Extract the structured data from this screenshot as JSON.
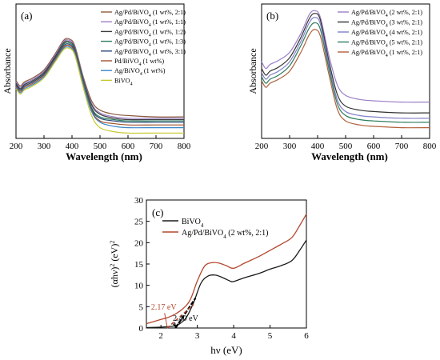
{
  "chart_data": [
    {
      "type": "line",
      "panel_label": "(a)",
      "xlabel": "Wavelength (nm)",
      "ylabel": "Absorbance",
      "xlim": [
        200,
        800
      ],
      "xticks": [
        200,
        300,
        400,
        500,
        600,
        700,
        800
      ],
      "ylim": [
        0,
        1
      ],
      "legend_position": "top-right",
      "series": [
        {
          "name": "Ag/Pd/BiVO4 (1 wt%, 2:1)",
          "color": "#8b5a3c",
          "x": [
            200,
            215,
            230,
            260,
            300,
            340,
            370,
            390,
            410,
            440,
            470,
            500,
            550,
            600,
            700,
            800
          ],
          "y": [
            0.43,
            0.39,
            0.42,
            0.45,
            0.51,
            0.63,
            0.73,
            0.74,
            0.69,
            0.46,
            0.28,
            0.21,
            0.18,
            0.17,
            0.16,
            0.16
          ]
        },
        {
          "name": "Ag/Pd/BiVO4 (1 wt%, 1:1)",
          "color": "#9c7fc8",
          "x": [
            200,
            215,
            230,
            260,
            300,
            340,
            370,
            390,
            410,
            440,
            470,
            500,
            550,
            600,
            700,
            800
          ],
          "y": [
            0.42,
            0.38,
            0.41,
            0.44,
            0.5,
            0.62,
            0.72,
            0.73,
            0.68,
            0.45,
            0.26,
            0.19,
            0.16,
            0.15,
            0.15,
            0.15
          ]
        },
        {
          "name": "Ag/Pd/BiVO4 (1 wt%, 1:2)",
          "color": "#3d3d3d",
          "x": [
            200,
            215,
            230,
            260,
            300,
            340,
            370,
            390,
            410,
            440,
            470,
            500,
            550,
            600,
            700,
            800
          ],
          "y": [
            0.41,
            0.37,
            0.4,
            0.43,
            0.49,
            0.61,
            0.71,
            0.72,
            0.67,
            0.44,
            0.25,
            0.18,
            0.15,
            0.14,
            0.14,
            0.14
          ]
        },
        {
          "name": "Ag/Pd/BiVO4 (1 wt%, 1:3)",
          "color": "#2e7d5e",
          "x": [
            200,
            215,
            230,
            260,
            300,
            340,
            370,
            390,
            410,
            440,
            470,
            500,
            550,
            600,
            700,
            800
          ],
          "y": [
            0.4,
            0.36,
            0.39,
            0.42,
            0.48,
            0.6,
            0.7,
            0.71,
            0.66,
            0.43,
            0.23,
            0.16,
            0.14,
            0.13,
            0.13,
            0.13
          ]
        },
        {
          "name": "Ag/Pd/BiVO4 (1 wt%, 3:1)",
          "color": "#2a4a7a",
          "x": [
            200,
            215,
            230,
            260,
            300,
            340,
            370,
            390,
            410,
            440,
            470,
            500,
            550,
            600,
            700,
            800
          ],
          "y": [
            0.4,
            0.36,
            0.39,
            0.42,
            0.48,
            0.6,
            0.69,
            0.7,
            0.65,
            0.42,
            0.22,
            0.15,
            0.13,
            0.12,
            0.12,
            0.12
          ]
        },
        {
          "name": "Pd/BiVO4 (1 wt%)",
          "color": "#a0522d",
          "x": [
            200,
            215,
            230,
            260,
            300,
            340,
            370,
            390,
            410,
            440,
            470,
            500,
            550,
            600,
            700,
            800
          ],
          "y": [
            0.39,
            0.35,
            0.38,
            0.41,
            0.47,
            0.59,
            0.68,
            0.69,
            0.64,
            0.41,
            0.21,
            0.13,
            0.11,
            0.1,
            0.1,
            0.1
          ]
        },
        {
          "name": "Ag/BiVO4 (1 wt%)",
          "color": "#3a86c8",
          "x": [
            200,
            215,
            230,
            260,
            300,
            340,
            370,
            390,
            410,
            440,
            470,
            500,
            550,
            600,
            700,
            800
          ],
          "y": [
            0.38,
            0.34,
            0.37,
            0.4,
            0.46,
            0.58,
            0.67,
            0.68,
            0.63,
            0.4,
            0.2,
            0.12,
            0.09,
            0.08,
            0.08,
            0.08
          ]
        },
        {
          "name": "BiVO4",
          "color": "#c8c830",
          "x": [
            200,
            215,
            230,
            260,
            300,
            340,
            370,
            390,
            410,
            440,
            470,
            500,
            550,
            600,
            700,
            800
          ],
          "y": [
            0.37,
            0.33,
            0.36,
            0.39,
            0.45,
            0.57,
            0.66,
            0.67,
            0.62,
            0.38,
            0.17,
            0.08,
            0.05,
            0.04,
            0.04,
            0.04
          ]
        }
      ]
    },
    {
      "type": "line",
      "panel_label": "(b)",
      "xlabel": "Wavelength (nm)",
      "ylabel": "Absorbance",
      "xlim": [
        200,
        800
      ],
      "xticks": [
        200,
        300,
        400,
        500,
        600,
        700,
        800
      ],
      "ylim": [
        0,
        1
      ],
      "legend_position": "top-right",
      "series": [
        {
          "name": "Ag/Pd/BiVO4 (2 wt%, 2:1)",
          "color": "#9c7fc8",
          "x": [
            200,
            215,
            230,
            260,
            300,
            340,
            370,
            390,
            410,
            440,
            470,
            500,
            550,
            600,
            700,
            800
          ],
          "y": [
            0.57,
            0.52,
            0.55,
            0.58,
            0.64,
            0.78,
            0.92,
            0.95,
            0.9,
            0.62,
            0.4,
            0.32,
            0.29,
            0.28,
            0.27,
            0.27
          ]
        },
        {
          "name": "Ag/Pd/BiVO4 (3 wt%, 2:1)",
          "color": "#333333",
          "x": [
            200,
            215,
            230,
            260,
            300,
            340,
            370,
            390,
            410,
            440,
            470,
            500,
            550,
            600,
            700,
            800
          ],
          "y": [
            0.52,
            0.47,
            0.5,
            0.53,
            0.6,
            0.75,
            0.89,
            0.93,
            0.88,
            0.58,
            0.33,
            0.24,
            0.21,
            0.2,
            0.19,
            0.19
          ]
        },
        {
          "name": "Ag/Pd/BiVO4 (4 wt%, 2:1)",
          "color": "#8080c8",
          "x": [
            200,
            215,
            230,
            260,
            300,
            340,
            370,
            390,
            410,
            440,
            470,
            500,
            550,
            600,
            700,
            800
          ],
          "y": [
            0.49,
            0.44,
            0.47,
            0.5,
            0.57,
            0.72,
            0.86,
            0.9,
            0.85,
            0.55,
            0.29,
            0.2,
            0.17,
            0.16,
            0.15,
            0.15
          ]
        },
        {
          "name": "Ag/Pd/BiVO4 (5 wt%, 2:1)",
          "color": "#2e7d5e",
          "x": [
            200,
            215,
            230,
            260,
            300,
            340,
            370,
            390,
            410,
            440,
            470,
            500,
            550,
            600,
            700,
            800
          ],
          "y": [
            0.46,
            0.41,
            0.44,
            0.47,
            0.54,
            0.69,
            0.82,
            0.86,
            0.81,
            0.52,
            0.26,
            0.17,
            0.14,
            0.13,
            0.12,
            0.12
          ]
        },
        {
          "name": "Ag/Pd/BiVO4 (1 wt%, 2:1)",
          "color": "#b0603a",
          "x": [
            200,
            215,
            230,
            260,
            300,
            340,
            370,
            390,
            410,
            440,
            470,
            500,
            550,
            600,
            700,
            800
          ],
          "y": [
            0.43,
            0.38,
            0.41,
            0.44,
            0.5,
            0.64,
            0.77,
            0.81,
            0.76,
            0.48,
            0.22,
            0.13,
            0.1,
            0.09,
            0.08,
            0.08
          ]
        }
      ]
    },
    {
      "type": "line",
      "panel_label": "(c)",
      "xlabel": "hν (eV)",
      "ylabel": "(αhν)² (eV)²",
      "xlim": [
        1.6,
        6
      ],
      "ylim": [
        0,
        30
      ],
      "xticks": [
        2,
        3,
        4,
        5,
        6
      ],
      "yticks": [
        0,
        5,
        10,
        15,
        20,
        25,
        30
      ],
      "legend_position": "top-left",
      "series": [
        {
          "name": "BiVO4",
          "color": "#1a1a1a",
          "x": [
            1.6,
            2.0,
            2.3,
            2.5,
            2.7,
            2.9,
            3.1,
            3.3,
            3.5,
            3.7,
            3.9,
            4.0,
            4.3,
            4.7,
            5.0,
            5.3,
            5.6,
            5.8,
            6.0
          ],
          "y": [
            0.1,
            0.2,
            0.4,
            0.9,
            2.5,
            6.0,
            10.5,
            12.2,
            12.4,
            11.8,
            11.0,
            10.9,
            11.8,
            12.8,
            13.8,
            14.6,
            15.8,
            18.0,
            20.6
          ]
        },
        {
          "name": "Ag/Pd/BiVO4 (2 wt%, 2:1)",
          "color": "#b5472e",
          "x": [
            1.6,
            1.8,
            2.0,
            2.2,
            2.4,
            2.6,
            2.8,
            3.0,
            3.2,
            3.4,
            3.6,
            3.8,
            4.0,
            4.3,
            4.7,
            5.0,
            5.3,
            5.6,
            5.8,
            6.0
          ],
          "y": [
            1.0,
            1.5,
            2.0,
            2.5,
            3.3,
            4.5,
            6.5,
            11.0,
            14.5,
            15.3,
            15.2,
            14.6,
            14.0,
            15.2,
            16.8,
            18.2,
            19.6,
            21.2,
            23.8,
            26.7
          ]
        }
      ],
      "tangents": [
        {
          "label": "2.40 eV",
          "x": [
            2.4,
            2.95
          ],
          "y": [
            0,
            7.0
          ]
        },
        {
          "label": "2.17 eV",
          "x": [
            2.17,
            2.9
          ],
          "y": [
            0,
            5.5
          ]
        }
      ]
    }
  ],
  "legend_a": [
    {
      "base": "Ag/Pd/BiVO",
      "sub": "4",
      "rest": " (1 wt%, 2:1)"
    },
    {
      "base": "Ag/Pd/BiVO",
      "sub": "4",
      "rest": " (1 wt%, 1:1)"
    },
    {
      "base": "Ag/Pd/BiVO",
      "sub": "4",
      "rest": " (1 wt%, 1:2)"
    },
    {
      "base": "Ag/Pd/BiVO",
      "sub": "4",
      "rest": " (1 wt%, 1:3)"
    },
    {
      "base": "Ag/Pd/BiVO",
      "sub": "4",
      "rest": " (1 wt%, 3:1)"
    },
    {
      "base": "Pd/BiVO",
      "sub": "4",
      "rest": " (1 wt%)"
    },
    {
      "base": "Ag/BiVO",
      "sub": "4",
      "rest": " (1 wt%)"
    },
    {
      "base": "BiVO",
      "sub": "4",
      "rest": ""
    }
  ],
  "legend_b": [
    {
      "base": "Ag/Pd/BiVO",
      "sub": "4",
      "rest": " (2 wt%, 2:1)"
    },
    {
      "base": "Ag/Pd/BiVO",
      "sub": "4",
      "rest": " (3 wt%, 2:1)"
    },
    {
      "base": "Ag/Pd/BiVO",
      "sub": "4",
      "rest": " (4 wt%, 2:1)"
    },
    {
      "base": "Ag/Pd/BiVO",
      "sub": "4",
      "rest": " (5 wt%, 2:1)"
    },
    {
      "base": "Ag/Pd/BiVO",
      "sub": "4",
      "rest": " (1 wt%, 2:1)"
    }
  ],
  "legend_c": [
    {
      "base": "BiVO",
      "sub": "4",
      "rest": ""
    },
    {
      "base": "Ag/Pd/BiVO",
      "sub": "4",
      "rest": " (2 wt%, 2:1)"
    }
  ]
}
